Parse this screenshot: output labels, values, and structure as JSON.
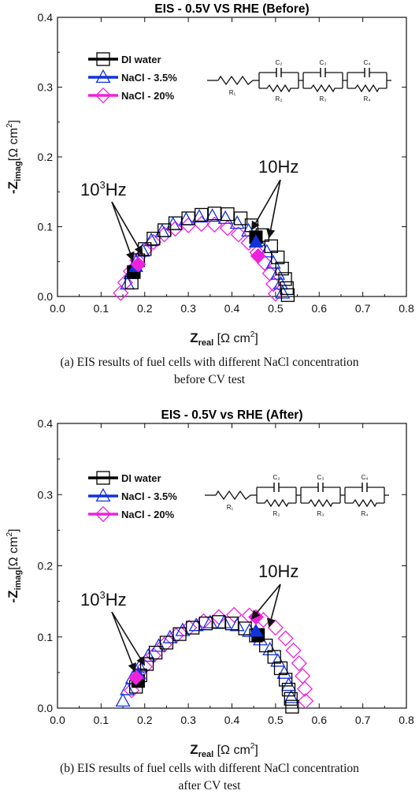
{
  "panels": [
    {
      "caption_line1": "(a) EIS results of fuel cells with different NaCl concentration",
      "caption_line2": "before CV test"
    },
    {
      "caption_line1": "(b) EIS results of fuel cells with different NaCl concentration",
      "caption_line2": "after CV test"
    }
  ],
  "chart_data": [
    {
      "type": "scatter",
      "title": "EIS - 0.5V VS RHE (Before)",
      "xlabel_main": "Z",
      "xlabel_sub": "real",
      "xlabel_unit": "[Ω  cm",
      "ylabel_main": "-Z",
      "ylabel_sub": "imag",
      "ylabel_unit": "[Ω cm",
      "xlim": [
        0.0,
        0.8
      ],
      "ylim": [
        0.0,
        0.4
      ],
      "xticks": [
        "0.0",
        "0.1",
        "0.2",
        "0.3",
        "0.4",
        "0.5",
        "0.6",
        "0.7",
        "0.8"
      ],
      "yticks": [
        "0.0",
        "0.1",
        "0.2",
        "0.3",
        "0.4"
      ],
      "legend": "top-left",
      "circuit_labels": {
        "r1": "R₁",
        "c": [
          "C₂",
          "C₃",
          "C₄"
        ],
        "r": [
          "R₂",
          "R₃",
          "R₄"
        ]
      },
      "annotations": [
        {
          "text": "10³Hz",
          "x": 0.18,
          "y": 0.045
        },
        {
          "text": "10Hz",
          "x": 0.46,
          "y": 0.08
        }
      ],
      "series": [
        {
          "name": "DI water",
          "marker": "square",
          "color": "#000000",
          "x": [
            0.17,
            0.175,
            0.185,
            0.2,
            0.22,
            0.245,
            0.27,
            0.3,
            0.33,
            0.36,
            0.39,
            0.42,
            0.445,
            0.47,
            0.49,
            0.505,
            0.515,
            0.522,
            0.526,
            0.528
          ],
          "y": [
            0.02,
            0.035,
            0.052,
            0.068,
            0.083,
            0.095,
            0.105,
            0.112,
            0.117,
            0.119,
            0.118,
            0.112,
            0.102,
            0.088,
            0.072,
            0.056,
            0.04,
            0.025,
            0.012,
            0.002
          ],
          "highlight": [
            {
              "x": 0.175,
              "y": 0.035
            },
            {
              "x": 0.455,
              "y": 0.085
            }
          ]
        },
        {
          "name": "NaCl - 3.5%",
          "marker": "triangle",
          "color": "#1133dd",
          "x": [
            0.16,
            0.168,
            0.18,
            0.195,
            0.215,
            0.24,
            0.265,
            0.295,
            0.325,
            0.355,
            0.385,
            0.412,
            0.438,
            0.46,
            0.48,
            0.495,
            0.505,
            0.512,
            0.516
          ],
          "y": [
            0.018,
            0.033,
            0.049,
            0.065,
            0.08,
            0.093,
            0.103,
            0.11,
            0.114,
            0.115,
            0.112,
            0.105,
            0.094,
            0.08,
            0.064,
            0.048,
            0.032,
            0.018,
            0.005
          ],
          "highlight": [
            {
              "x": 0.18,
              "y": 0.043
            },
            {
              "x": 0.455,
              "y": 0.078
            }
          ]
        },
        {
          "name": "NaCl - 20%",
          "marker": "diamond",
          "color": "#ee22dd",
          "x": [
            0.145,
            0.155,
            0.168,
            0.183,
            0.2,
            0.22,
            0.245,
            0.27,
            0.3,
            0.33,
            0.36,
            0.39,
            0.415,
            0.438,
            0.458,
            0.475,
            0.487,
            0.495,
            0.5
          ],
          "y": [
            0.005,
            0.02,
            0.036,
            0.052,
            0.066,
            0.078,
            0.089,
            0.097,
            0.102,
            0.104,
            0.103,
            0.098,
            0.089,
            0.077,
            0.063,
            0.048,
            0.033,
            0.018,
            0.004
          ],
          "highlight": [
            {
              "x": 0.185,
              "y": 0.046
            },
            {
              "x": 0.46,
              "y": 0.058
            }
          ]
        }
      ]
    },
    {
      "type": "scatter",
      "title": "EIS - 0.5V vs RHE (After)",
      "xlabel_main": "Z",
      "xlabel_sub": "real",
      "xlabel_unit": "[Ω  cm",
      "ylabel_main": "-Z",
      "ylabel_sub": "imag",
      "ylabel_unit": "[Ω cm",
      "xlim": [
        0.0,
        0.8
      ],
      "ylim": [
        0.0,
        0.4
      ],
      "xticks": [
        "0.0",
        "0.1",
        "0.2",
        "0.3",
        "0.4",
        "0.5",
        "0.6",
        "0.7",
        "0.8"
      ],
      "yticks": [
        "0.0",
        "0.1",
        "0.2",
        "0.3",
        "0.4"
      ],
      "legend": "top-left",
      "circuit_labels": {
        "r1": "R₁",
        "c": [
          "C₂",
          "C₃",
          "C₄"
        ],
        "r": [
          "R₂",
          "R₃",
          "R₄"
        ]
      },
      "annotations": [
        {
          "text": "10³Hz",
          "x": 0.185,
          "y": 0.045
        },
        {
          "text": "10Hz",
          "x": 0.46,
          "y": 0.11
        }
      ],
      "series": [
        {
          "name": "DI water",
          "marker": "square",
          "color": "#000000",
          "x": [
            0.18,
            0.19,
            0.205,
            0.225,
            0.25,
            0.28,
            0.31,
            0.34,
            0.37,
            0.4,
            0.43,
            0.455,
            0.478,
            0.497,
            0.512,
            0.523,
            0.53,
            0.535,
            0.538
          ],
          "y": [
            0.03,
            0.046,
            0.062,
            0.078,
            0.092,
            0.104,
            0.113,
            0.119,
            0.121,
            0.119,
            0.112,
            0.102,
            0.088,
            0.072,
            0.056,
            0.04,
            0.026,
            0.013,
            0.002
          ],
          "highlight": [
            {
              "x": 0.185,
              "y": 0.038
            },
            {
              "x": 0.46,
              "y": 0.103
            }
          ]
        },
        {
          "name": "NaCl - 3.5%",
          "marker": "triangle",
          "color": "#1133dd",
          "x": [
            0.15,
            0.16,
            0.172,
            0.188,
            0.208,
            0.232,
            0.258,
            0.287,
            0.318,
            0.35,
            0.382,
            0.412,
            0.44,
            0.465,
            0.487,
            0.505,
            0.52,
            0.53,
            0.536
          ],
          "y": [
            0.01,
            0.026,
            0.042,
            0.058,
            0.073,
            0.087,
            0.099,
            0.109,
            0.116,
            0.12,
            0.12,
            0.116,
            0.108,
            0.096,
            0.082,
            0.066,
            0.049,
            0.032,
            0.015
          ],
          "highlight": [
            {
              "x": 0.185,
              "y": 0.048
            },
            {
              "x": 0.455,
              "y": 0.108
            }
          ]
        },
        {
          "name": "NaCl - 20%",
          "marker": "diamond",
          "color": "#ee22dd",
          "x": [
            0.17,
            0.185,
            0.2,
            0.22,
            0.245,
            0.272,
            0.302,
            0.335,
            0.37,
            0.405,
            0.44,
            0.472,
            0.5,
            0.523,
            0.541,
            0.554,
            0.562,
            0.567,
            0.569
          ],
          "y": [
            0.025,
            0.042,
            0.058,
            0.074,
            0.089,
            0.102,
            0.113,
            0.122,
            0.128,
            0.131,
            0.13,
            0.124,
            0.113,
            0.098,
            0.081,
            0.063,
            0.045,
            0.027,
            0.01
          ],
          "highlight": [
            {
              "x": 0.18,
              "y": 0.043
            },
            {
              "x": 0.455,
              "y": 0.128
            }
          ]
        }
      ]
    }
  ]
}
